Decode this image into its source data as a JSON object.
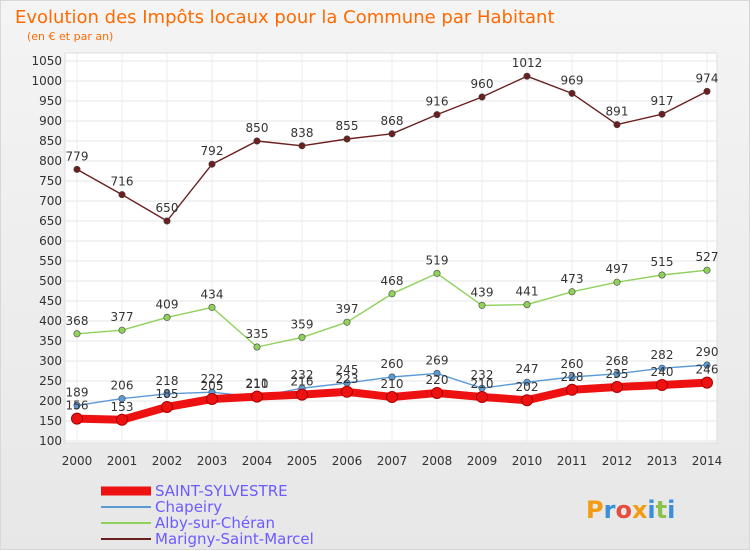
{
  "chart_data": {
    "type": "line",
    "title": "Evolution des Impôts locaux pour la Commune par Habitant",
    "subtitle": "(en € et par an)",
    "x": [
      "2000",
      "2001",
      "2002",
      "2003",
      "2004",
      "2005",
      "2006",
      "2007",
      "2008",
      "2009",
      "2010",
      "2011",
      "2012",
      "2013",
      "2014"
    ],
    "ylim": [
      100,
      1050
    ],
    "yticks": [
      100,
      150,
      200,
      250,
      300,
      350,
      400,
      450,
      500,
      550,
      600,
      650,
      700,
      750,
      800,
      850,
      900,
      950,
      1000,
      1050
    ],
    "grid": true,
    "legend_position": "bottom-left",
    "series": [
      {
        "name": "Marigny-Saint-Marcel",
        "color": "#6b1f1f",
        "values": [
          779,
          716,
          650,
          792,
          850,
          838,
          855,
          868,
          916,
          960,
          1012,
          969,
          891,
          917,
          974
        ]
      },
      {
        "name": "Alby-sur-Chéran",
        "color": "#8fd15a",
        "values": [
          368,
          377,
          409,
          434,
          335,
          359,
          397,
          468,
          519,
          439,
          441,
          473,
          497,
          515,
          527
        ]
      },
      {
        "name": "Chapeiry",
        "color": "#5b9bd5",
        "values": [
          189,
          206,
          218,
          222,
          210,
          232,
          245,
          260,
          269,
          232,
          247,
          260,
          268,
          282,
          290
        ]
      },
      {
        "name": "SAINT-SYLVESTRE",
        "color": "#ee1111",
        "values": [
          156,
          153,
          185,
          205,
          211,
          216,
          223,
          210,
          220,
          210,
          202,
          228,
          235,
          240,
          246
        ]
      }
    ],
    "legend_order": [
      "SAINT-SYLVESTRE",
      "Chapeiry",
      "Alby-sur-Chéran",
      "Marigny-Saint-Marcel"
    ]
  },
  "branding": {
    "logo_text": "Proxiti",
    "logo_letters": [
      "P",
      "r",
      "o",
      "x",
      "i",
      "t",
      "i"
    ],
    "logo_colors": [
      "#f39c12",
      "#3b8fd9",
      "#e74c3c",
      "#f39c12",
      "#3b8fd9",
      "#8bc34a",
      "#3b8fd9"
    ]
  }
}
